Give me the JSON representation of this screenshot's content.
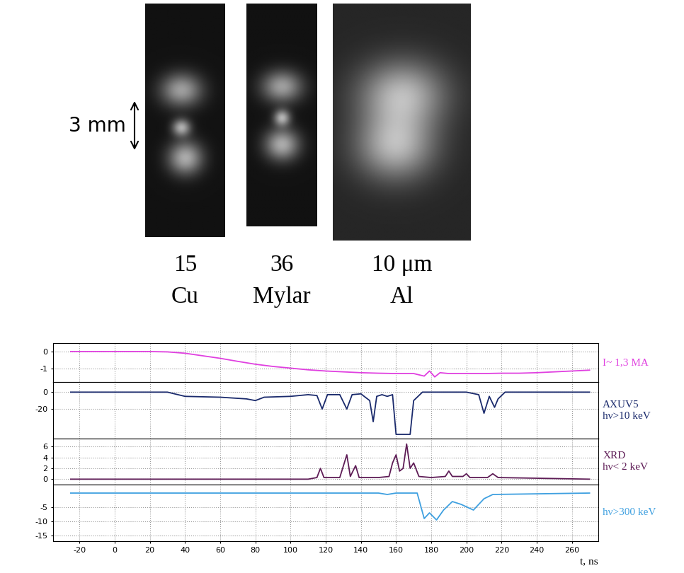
{
  "photos": {
    "scale_bar": "3 mm",
    "samples": [
      {
        "thickness": "15",
        "material": "Cu"
      },
      {
        "thickness": "36",
        "material": "Mylar"
      },
      {
        "thickness": "10 μm",
        "material": "Al"
      }
    ]
  },
  "chart_data": [
    {
      "type": "line",
      "annotations": [
        "I~ 1,3 MA"
      ],
      "tick_labels": "y",
      "grid": true,
      "xlim": [
        -35,
        275
      ],
      "xticks": [
        -20,
        0,
        20,
        40,
        60,
        80,
        100,
        120,
        140,
        160,
        180,
        200,
        220,
        240,
        260
      ],
      "ylim": [
        -1.8,
        0.5
      ],
      "yticks": [
        -1,
        0
      ],
      "series": [
        {
          "color": "#e040e0",
          "x": [
            -25,
            20,
            30,
            40,
            50,
            60,
            70,
            80,
            90,
            100,
            110,
            120,
            130,
            140,
            150,
            160,
            170,
            176,
            179,
            182,
            185,
            190,
            200,
            210,
            220,
            230,
            240,
            250,
            260,
            270
          ],
          "values": [
            0,
            0,
            -0.02,
            -0.1,
            -0.25,
            -0.4,
            -0.58,
            -0.75,
            -0.88,
            -0.98,
            -1.08,
            -1.15,
            -1.2,
            -1.25,
            -1.28,
            -1.3,
            -1.3,
            -1.45,
            -1.15,
            -1.5,
            -1.25,
            -1.3,
            -1.3,
            -1.3,
            -1.28,
            -1.28,
            -1.25,
            -1.2,
            -1.15,
            -1.1
          ]
        }
      ]
    },
    {
      "type": "line",
      "annotations": [
        "AXUV5",
        "hν>10 keV"
      ],
      "tick_labels": "y",
      "grid": true,
      "xlim": [
        -35,
        275
      ],
      "xticks": [
        -20,
        0,
        20,
        40,
        60,
        80,
        100,
        120,
        140,
        160,
        180,
        200,
        220,
        240,
        260
      ],
      "ylim": [
        -55,
        12
      ],
      "yticks": [
        -20,
        0
      ],
      "series": [
        {
          "color": "#1a2a6c",
          "x": [
            -25,
            30,
            40,
            60,
            75,
            80,
            85,
            100,
            110,
            115,
            118,
            121,
            128,
            132,
            135,
            140,
            145,
            147,
            149,
            152,
            155,
            158,
            160,
            168,
            170,
            175,
            200,
            207,
            210,
            213,
            216,
            218,
            222,
            230,
            270
          ],
          "values": [
            0,
            0,
            -5,
            -6,
            -8,
            -10,
            -6,
            -5,
            -3,
            -4,
            -20,
            -3,
            -3,
            -20,
            -3,
            -2,
            -10,
            -35,
            -5,
            -3,
            -5,
            -3,
            -50,
            -50,
            -10,
            0,
            0,
            -3,
            -25,
            -5,
            -18,
            -8,
            0,
            0,
            0
          ]
        }
      ]
    },
    {
      "type": "line",
      "annotations": [
        "XRD",
        "hν< 2 keV"
      ],
      "tick_labels": "y",
      "grid": true,
      "xlim": [
        -35,
        275
      ],
      "xticks": [
        -20,
        0,
        20,
        40,
        60,
        80,
        100,
        120,
        140,
        160,
        180,
        200,
        220,
        240,
        260
      ],
      "ylim": [
        -1,
        7.5
      ],
      "yticks": [
        0,
        2,
        4,
        6
      ],
      "series": [
        {
          "color": "#5e1c56",
          "x": [
            -25,
            110,
            115,
            117,
            119,
            128,
            132,
            134,
            137,
            139,
            150,
            156,
            158,
            160,
            162,
            164,
            166,
            168,
            170,
            173,
            180,
            188,
            190,
            192,
            198,
            200,
            202,
            212,
            215,
            218,
            270
          ],
          "values": [
            0,
            0,
            0.3,
            2,
            0.3,
            0.3,
            4.5,
            0.5,
            2.5,
            0.3,
            0.3,
            0.5,
            3,
            4.5,
            1.5,
            2,
            6.5,
            2,
            3,
            0.5,
            0.3,
            0.5,
            1.5,
            0.5,
            0.5,
            1,
            0.3,
            0.3,
            1,
            0.3,
            0
          ]
        }
      ]
    },
    {
      "type": "line",
      "annotations": [
        "hν>300 keV"
      ],
      "xlabel": "t, ns",
      "grid": true,
      "xlim": [
        -35,
        275
      ],
      "xticks": [
        -20,
        0,
        20,
        40,
        60,
        80,
        100,
        120,
        140,
        160,
        180,
        200,
        220,
        240,
        260
      ],
      "ylim": [
        -17,
        3
      ],
      "yticks": [
        -15,
        -10,
        -5
      ],
      "series": [
        {
          "color": "#3fa0e0",
          "x": [
            -25,
            150,
            155,
            160,
            172,
            176,
            179,
            183,
            187,
            192,
            197,
            204,
            210,
            215,
            270
          ],
          "values": [
            0,
            0,
            -0.5,
            0,
            0,
            -9,
            -7,
            -9.5,
            -6,
            -3,
            -4,
            -6,
            -2,
            -0.5,
            0
          ]
        }
      ]
    }
  ]
}
